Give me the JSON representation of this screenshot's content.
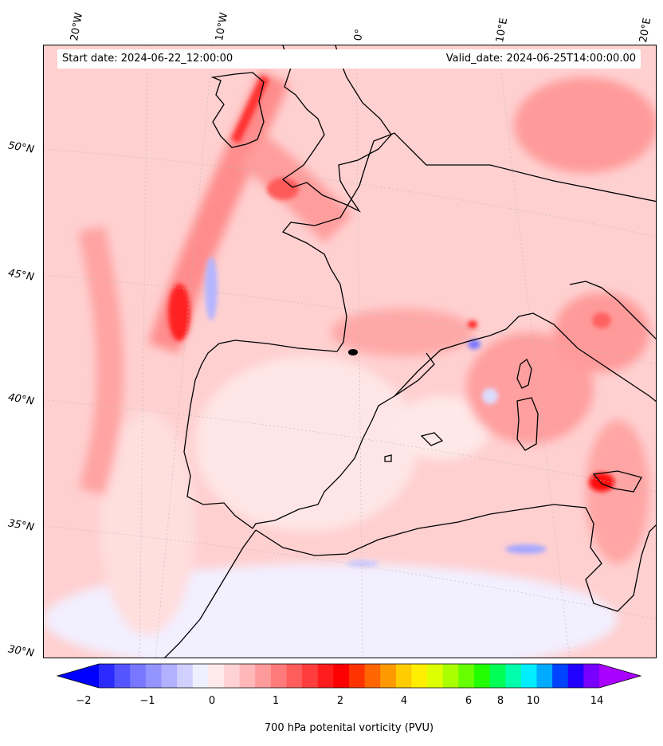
{
  "map": {
    "start_date": "Start date: 2024-06-22_12:00:00",
    "valid_date": "Valid_date: 2024-06-25T14:00:00.00",
    "lon_labels": [
      "20°W",
      "10°W",
      "0°",
      "10°E",
      "20°E"
    ],
    "lat_labels": [
      "50°N",
      "45°N",
      "40°N",
      "35°N",
      "30°N"
    ]
  },
  "colorbar": {
    "label": "700 hPa potenital vorticity (PVU)",
    "ticks": [
      "−2",
      "−1",
      "0",
      "1",
      "2",
      "4",
      "6",
      "8",
      "10",
      "14"
    ],
    "colors": [
      "#0000ff",
      "#2b2bff",
      "#5555ff",
      "#7777ff",
      "#9494ff",
      "#b1b1ff",
      "#d0d0ff",
      "#efefff",
      "#ffeaea",
      "#ffd3d3",
      "#ffb7b7",
      "#ff9a9a",
      "#ff7b7b",
      "#ff5c5c",
      "#ff3d3d",
      "#ff1c1c",
      "#ff0000",
      "#ff3300",
      "#ff6600",
      "#ff9900",
      "#ffcc00",
      "#ffee00",
      "#ddff00",
      "#aaff00",
      "#66ff00",
      "#22ff00",
      "#00ff55",
      "#00ffaa",
      "#00eeff",
      "#00aaff",
      "#0044ff",
      "#2200ff",
      "#7700ff",
      "#aa00ff"
    ],
    "extend": "both"
  },
  "style": {
    "background_field": "#ffd6d6",
    "coastline": "#000000",
    "gridline": "#bbbbbb"
  }
}
